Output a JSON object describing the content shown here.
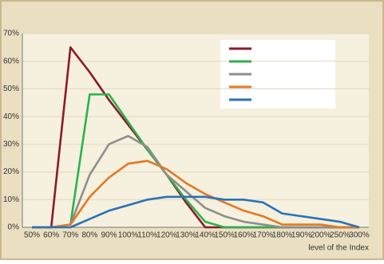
{
  "chart_data": {
    "type": "line",
    "x_label": "level of the Index",
    "categories": [
      "50%",
      "60%",
      "70%",
      "80%",
      "90%",
      "100%",
      "110%",
      "120%",
      "130%",
      "140%",
      "150%",
      "160%",
      "170%",
      "180%",
      "190%",
      "200%",
      "250%",
      "300%"
    ],
    "series": [
      {
        "color": "#8b1a2e",
        "values": [
          0,
          0,
          65,
          56,
          46,
          37,
          28,
          19,
          9,
          0,
          0,
          0,
          0,
          0,
          0,
          0,
          0,
          0
        ]
      },
      {
        "color": "#2bb24c",
        "values": [
          0,
          0,
          1,
          48,
          48,
          38,
          28,
          19,
          10,
          2,
          0,
          0,
          0,
          0,
          0,
          0,
          0,
          0
        ]
      },
      {
        "color": "#8e8e8e",
        "values": [
          0,
          0,
          1,
          19,
          30,
          33,
          29,
          19,
          13,
          7,
          4,
          2,
          1,
          0,
          0,
          0,
          0,
          0
        ]
      },
      {
        "color": "#e07a24",
        "values": [
          0,
          0,
          1,
          11,
          18,
          23,
          24,
          21,
          16,
          12,
          9,
          6,
          4,
          1,
          1,
          1,
          0,
          0
        ]
      },
      {
        "color": "#2a72b8",
        "values": [
          0,
          0,
          0,
          3,
          6,
          8,
          10,
          11,
          11,
          11,
          10,
          10,
          9,
          5,
          4,
          3,
          2,
          0
        ]
      }
    ],
    "ylim": [
      0,
      70
    ],
    "yticks": [
      {
        "value": 0,
        "label": "0%"
      },
      {
        "value": 10,
        "label": "10%"
      },
      {
        "value": 20,
        "label": "20%"
      },
      {
        "value": 30,
        "label": "30%"
      },
      {
        "value": 40,
        "label": "40%"
      },
      {
        "value": 50,
        "label": "50%"
      },
      {
        "value": 60,
        "label": "60%"
      },
      {
        "value": 70,
        "label": "70%"
      }
    ],
    "grid": true
  }
}
